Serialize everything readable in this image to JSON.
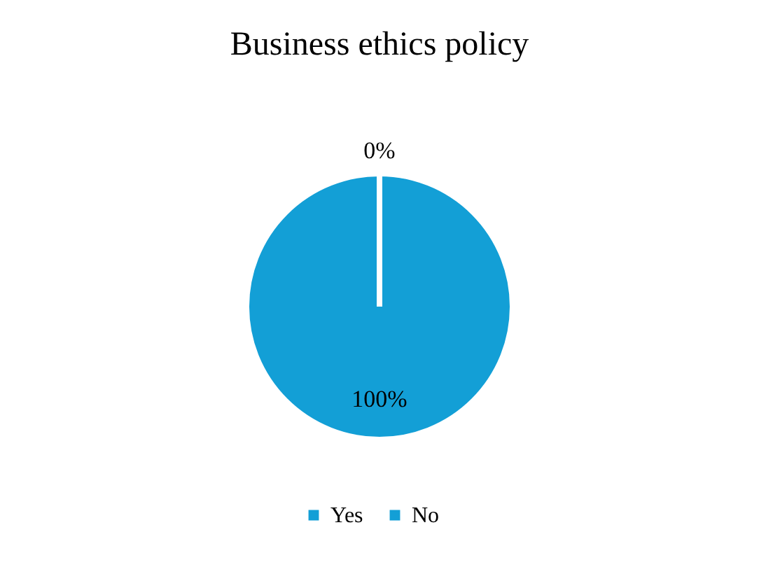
{
  "chart_data": {
    "type": "pie",
    "title": "Business ethics policy",
    "categories": [
      "Yes",
      "No"
    ],
    "values": [
      100,
      0
    ],
    "colors": [
      "#139fd6",
      "#139fd6"
    ],
    "value_labels": [
      "100%",
      "0%"
    ],
    "legend": "bottom"
  }
}
